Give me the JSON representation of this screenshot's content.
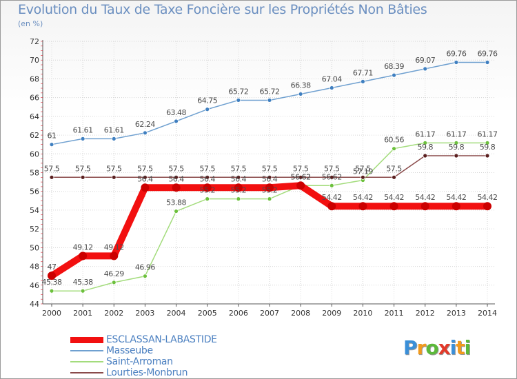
{
  "header": {
    "title": "Evolution du Taux de Taxe Foncière sur les Propriétés Non Bâties",
    "unit": "(en %)"
  },
  "chart_data": {
    "type": "line",
    "title": "Evolution du Taux de Taxe Foncière sur les Propriétés Non Bâties",
    "ylabel": "(en %)",
    "xlabel": "",
    "ylim": [
      44,
      72
    ],
    "yticks": [
      44,
      46,
      48,
      50,
      52,
      54,
      56,
      58,
      60,
      62,
      64,
      66,
      68,
      70,
      72
    ],
    "categories": [
      "2000",
      "2001",
      "2002",
      "2003",
      "2004",
      "2005",
      "2006",
      "2007",
      "2008",
      "2009",
      "2010",
      "2011",
      "2012",
      "2013",
      "2014"
    ],
    "series": [
      {
        "name": "Masseube",
        "color": "#6fa0d0",
        "marker": "#3f7fc0",
        "values": [
          61,
          61.61,
          61.61,
          62.24,
          63.48,
          64.75,
          65.72,
          65.72,
          66.38,
          67.04,
          67.71,
          68.39,
          69.07,
          69.76,
          69.76
        ],
        "labels": [
          "61",
          "61.61",
          "61.61",
          "62.24",
          "63.48",
          "64.75",
          "65.72",
          "65.72",
          "66.38",
          "67.04",
          "67.71",
          "68.39",
          "69.07",
          "69.76",
          "69.76"
        ]
      },
      {
        "name": "Saint-Arroman",
        "color": "#a3dc7c",
        "marker": "#6cc03c",
        "values": [
          45.38,
          45.38,
          46.29,
          46.96,
          53.88,
          55.2,
          55.2,
          55.2,
          56.62,
          56.62,
          57.19,
          60.56,
          61.17,
          61.17,
          61.17
        ],
        "labels": [
          "45.38",
          "45.38",
          "46.29",
          "46.96",
          "53.88",
          "55.2",
          "55.2",
          "55.2",
          "56.62",
          "56.62",
          "57.19",
          "60.56",
          "61.17",
          "61.17",
          "61.17"
        ]
      },
      {
        "name": "Lourties-Monbrun",
        "color": "#8a4a4a",
        "marker": "#5a1f1f",
        "values": [
          57.5,
          57.5,
          57.5,
          57.5,
          57.5,
          57.5,
          57.5,
          57.5,
          57.5,
          57.5,
          57.5,
          57.5,
          59.8,
          59.8,
          59.8
        ],
        "labels": [
          "57.5",
          "57.5",
          "57.5",
          "57.5",
          "57.5",
          "57.5",
          "57.5",
          "57.5",
          "57.5",
          "57.5",
          "57.5",
          "57.5",
          "59.8",
          "59.8",
          "59.8"
        ]
      },
      {
        "name": "ESCLASSAN-LABASTIDE",
        "color": "#f21010",
        "marker": "#cc0000",
        "values": [
          47,
          49.12,
          49.12,
          56.4,
          56.4,
          56.4,
          56.4,
          56.4,
          56.62,
          54.42,
          54.42,
          54.42,
          54.42,
          54.42,
          54.42
        ],
        "labels": [
          "47",
          "49.12",
          "49.12",
          "56.4",
          "56.4",
          "56.4",
          "56.4",
          "56.4",
          "56.62",
          "54.42",
          "54.42",
          "54.42",
          "54.42",
          "54.42",
          "54.42"
        ]
      }
    ],
    "legend_order": [
      "ESCLASSAN-LABASTIDE",
      "Masseube",
      "Saint-Arroman",
      "Lourties-Monbrun"
    ],
    "legend_position": "bottom-left",
    "grid": true
  },
  "logo": {
    "text": "Proxiti",
    "letters": [
      "P",
      "r",
      "o",
      "x",
      "i",
      "t",
      "i"
    ],
    "colors": [
      "#3a8fd8",
      "#f29a1c",
      "#5cb83a",
      "#e23a2a",
      "#3a8fd8",
      "#f29a1c",
      "#5cb83a"
    ]
  }
}
